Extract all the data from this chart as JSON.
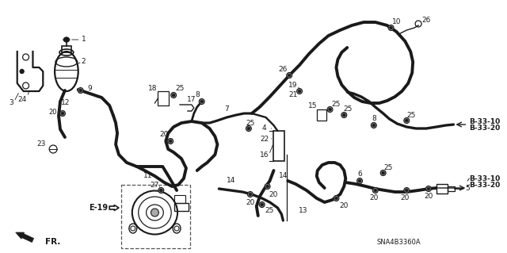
{
  "bg_color": "#ffffff",
  "diagram_color": "#1a1a1a",
  "labels": {
    "fr_arrow": "FR.",
    "e19": "E-19",
    "sna": "SNA4B3360A",
    "b3310_1": "B-33-10",
    "b3320_1": "B-33-20",
    "b3310_2": "B-33-10",
    "b3320_2": "B-33-20"
  },
  "figsize": [
    6.4,
    3.19
  ],
  "dpi": 100,
  "lw_hose": 2.8,
  "lw_thin": 1.0,
  "lw_med": 1.6
}
